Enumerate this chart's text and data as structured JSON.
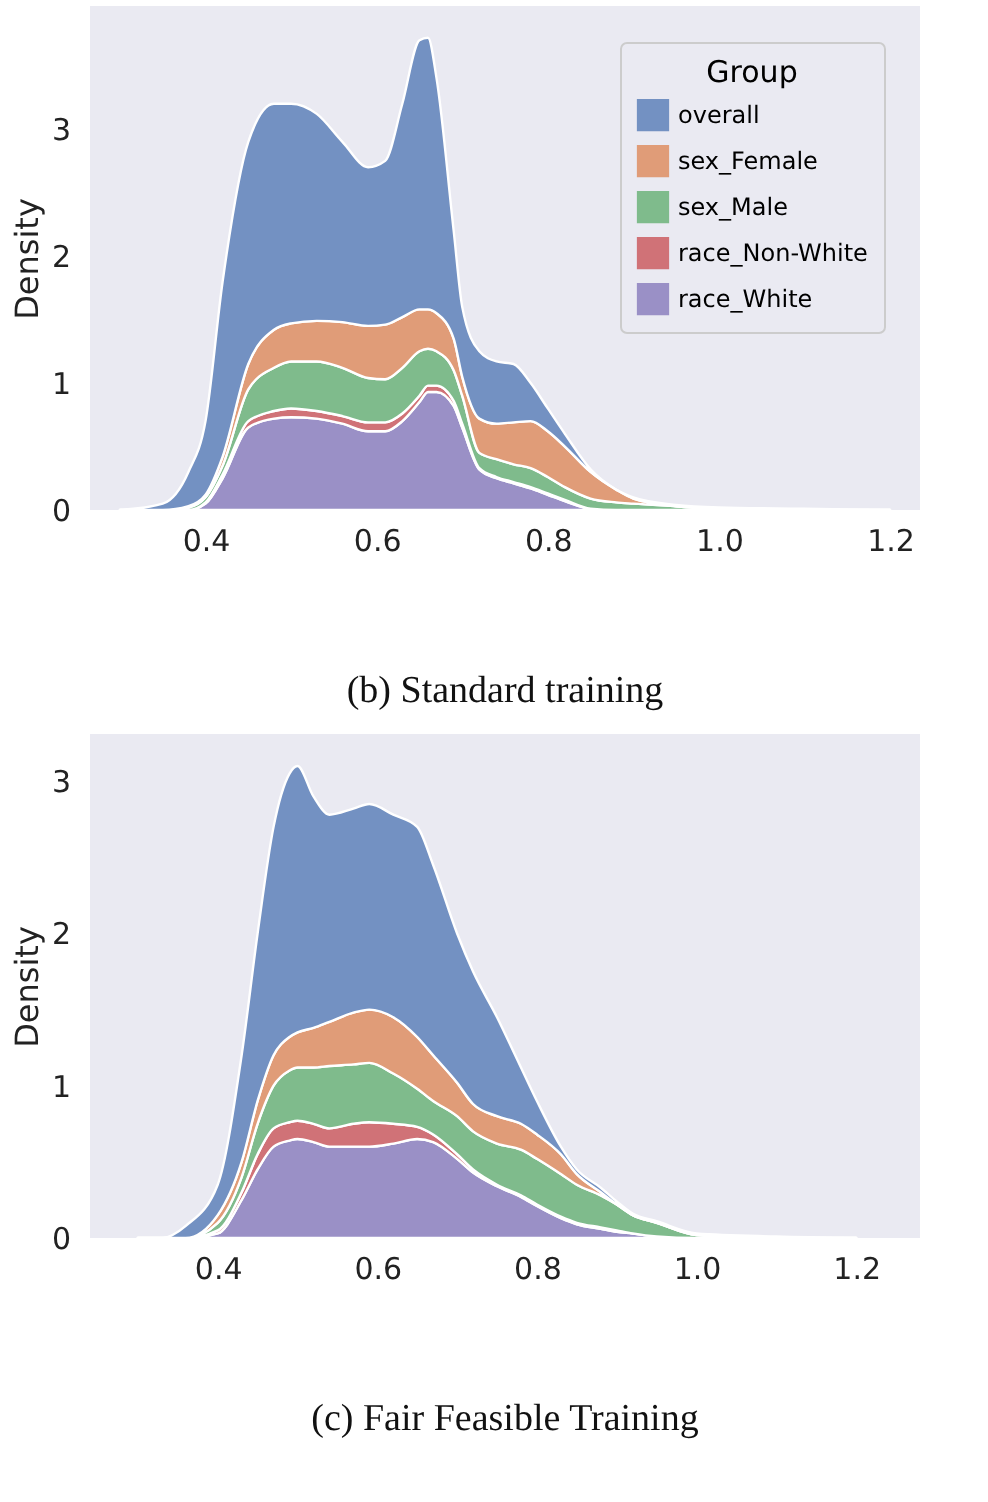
{
  "chart_data": [
    {
      "type": "area",
      "stacked": true,
      "title": "(b) Standard training",
      "ylabel": "Density",
      "legend_title": "Group",
      "legend": "top right",
      "x": [
        0.3,
        0.35,
        0.38,
        0.4,
        0.42,
        0.45,
        0.48,
        0.5,
        0.53,
        0.56,
        0.59,
        0.61,
        0.63,
        0.65,
        0.66,
        0.67,
        0.69,
        0.7,
        0.72,
        0.74,
        0.76,
        0.78,
        0.8,
        0.82,
        0.85,
        0.88,
        0.9,
        0.95,
        1.0,
        1.1,
        1.2
      ],
      "xlim": [
        0.265,
        1.235
      ],
      "ylim": [
        0,
        3.97
      ],
      "xticks": [
        0.4,
        0.6,
        0.8,
        {
          "value": 1,
          "label": "1.0"
        },
        1.2
      ],
      "yticks": [
        0,
        1,
        2,
        3
      ],
      "series": [
        {
          "name": "race_White",
          "color": "#9a90c6",
          "values": [
            0,
            0,
            0,
            0.05,
            0.25,
            0.65,
            0.72,
            0.73,
            0.72,
            0.68,
            0.62,
            0.62,
            0.7,
            0.85,
            0.93,
            0.93,
            0.82,
            0.65,
            0.32,
            0.25,
            0.21,
            0.17,
            0.12,
            0.07,
            0.01,
            0,
            0,
            0,
            0,
            0,
            0
          ]
        },
        {
          "name": "race_Non-White",
          "color": "#d07277",
          "values": [
            0,
            0,
            0,
            0.01,
            0.03,
            0.05,
            0.06,
            0.07,
            0.06,
            0.06,
            0.07,
            0.07,
            0.06,
            0.05,
            0.05,
            0.05,
            0.04,
            0.03,
            0.01,
            0.01,
            0.01,
            0.01,
            0.01,
            0.01,
            0,
            0,
            0,
            0,
            0,
            0,
            0
          ]
        },
        {
          "name": "sex_Male",
          "color": "#7fbb8c",
          "values": [
            0,
            0,
            0.02,
            0.04,
            0.07,
            0.25,
            0.34,
            0.37,
            0.39,
            0.38,
            0.35,
            0.34,
            0.36,
            0.35,
            0.29,
            0.27,
            0.24,
            0.22,
            0.12,
            0.14,
            0.14,
            0.15,
            0.13,
            0.1,
            0.08,
            0.06,
            0.05,
            0.03,
            0.01,
            0,
            0
          ]
        },
        {
          "name": "sex_Female",
          "color": "#e09c78",
          "values": [
            0,
            0,
            0.01,
            0.02,
            0.07,
            0.2,
            0.3,
            0.3,
            0.32,
            0.36,
            0.41,
            0.43,
            0.4,
            0.33,
            0.31,
            0.3,
            0.25,
            0.15,
            0.27,
            0.28,
            0.33,
            0.37,
            0.36,
            0.32,
            0.21,
            0.1,
            0.04,
            0,
            0,
            0,
            0
          ]
        },
        {
          "name": "overall",
          "color": "#7391c2",
          "values": [
            0,
            0.05,
            0.27,
            0.58,
            1.38,
            1.75,
            1.78,
            1.73,
            1.63,
            1.42,
            1.25,
            1.29,
            1.68,
            2.12,
            2.14,
            1.85,
            0.85,
            0.55,
            0.53,
            0.49,
            0.46,
            0.3,
            0.18,
            0.1,
            0.02,
            0,
            0.01,
            0.01,
            0.01,
            0.01,
            0
          ]
        }
      ]
    },
    {
      "type": "area",
      "stacked": true,
      "title": "(c) Fair Feasible Training",
      "ylabel": "Density",
      "legend": false,
      "x": [
        0.3,
        0.33,
        0.36,
        0.4,
        0.43,
        0.45,
        0.47,
        0.49,
        0.5,
        0.52,
        0.54,
        0.57,
        0.59,
        0.62,
        0.65,
        0.67,
        0.7,
        0.72,
        0.75,
        0.78,
        0.8,
        0.83,
        0.85,
        0.88,
        0.9,
        0.92,
        0.95,
        1.0,
        1.1,
        1.2
      ],
      "xlim": [
        0.24,
        1.28
      ],
      "ylim": [
        0,
        3.31
      ],
      "xticks": [
        0.4,
        0.6,
        0.8,
        {
          "value": 1,
          "label": "1.0"
        },
        1.2
      ],
      "yticks": [
        0,
        1,
        2,
        3
      ],
      "series": [
        {
          "name": "race_White",
          "color": "#9a90c6",
          "values": [
            0,
            0,
            0,
            0.03,
            0.25,
            0.45,
            0.6,
            0.64,
            0.65,
            0.63,
            0.6,
            0.6,
            0.6,
            0.62,
            0.65,
            0.63,
            0.52,
            0.43,
            0.34,
            0.27,
            0.21,
            0.13,
            0.09,
            0.06,
            0.04,
            0.03,
            0.01,
            0,
            0,
            0
          ]
        },
        {
          "name": "race_Non-White",
          "color": "#d07277",
          "values": [
            0,
            0,
            0,
            0.02,
            0.05,
            0.1,
            0.12,
            0.12,
            0.12,
            0.12,
            0.12,
            0.15,
            0.16,
            0.13,
            0.08,
            0.05,
            0.03,
            0.02,
            0.01,
            0.01,
            0.01,
            0.01,
            0.01,
            0.01,
            0.01,
            0,
            0,
            0,
            0,
            0
          ]
        },
        {
          "name": "sex_Male",
          "color": "#7fbb8c",
          "values": [
            0,
            0,
            0,
            0.05,
            0.1,
            0.2,
            0.28,
            0.34,
            0.35,
            0.37,
            0.41,
            0.39,
            0.39,
            0.33,
            0.25,
            0.22,
            0.25,
            0.25,
            0.27,
            0.3,
            0.3,
            0.28,
            0.25,
            0.21,
            0.17,
            0.12,
            0.09,
            0.02,
            0,
            0
          ]
        },
        {
          "name": "sex_Female",
          "color": "#e09c78",
          "values": [
            0,
            0,
            0,
            0.05,
            0.1,
            0.15,
            0.2,
            0.22,
            0.23,
            0.26,
            0.29,
            0.34,
            0.35,
            0.37,
            0.34,
            0.3,
            0.22,
            0.18,
            0.18,
            0.17,
            0.16,
            0.13,
            0.07,
            0.02,
            0,
            0,
            0,
            0,
            0,
            0
          ]
        },
        {
          "name": "overall",
          "color": "#7391c2",
          "values": [
            0,
            0,
            0.08,
            0.2,
            0.7,
            1.1,
            1.5,
            1.73,
            1.75,
            1.52,
            1.36,
            1.34,
            1.35,
            1.33,
            1.38,
            1.25,
            0.98,
            0.87,
            0.65,
            0.37,
            0.22,
            0.05,
            0.03,
            0.03,
            0.02,
            0.01,
            0.01,
            0.01,
            0.01,
            0
          ]
        }
      ]
    }
  ]
}
